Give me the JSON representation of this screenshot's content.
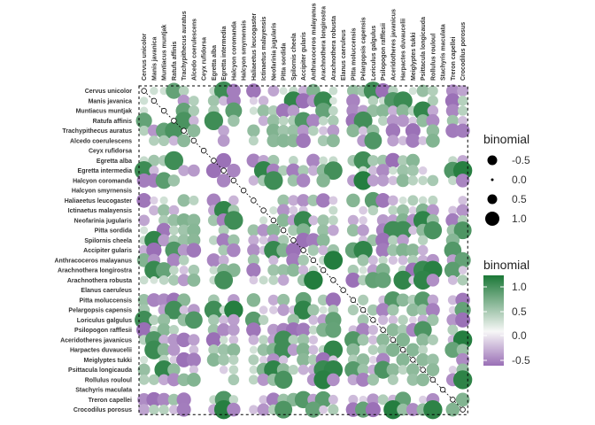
{
  "chart_data": {
    "type": "heatmap",
    "variables": [
      "Cervus unicolor",
      "Manis javanica",
      "Muntiacus muntjak",
      "Ratufa affinis",
      "Trachypithecus auratus",
      "Alcedo coerulescens",
      "Ceyx rufidorsa",
      "Egretta alba",
      "Egretta intermedia",
      "Halcyon coromanda",
      "Halcyon smyrnensis",
      "Haliaeetus leucogaster",
      "Ictinaetus malayensis",
      "Neofarinia jugularis",
      "Pitta sordida",
      "Spilornis cheela",
      "Accipiter gularis",
      "Anthracoceros malayanus",
      "Arachnothera longirostra",
      "Arachnothera robusta",
      "Elanus caeruleus",
      "Pitta moluccensis",
      "Pelargopsis capensis",
      "Loriculus galgulus",
      "Psilopogon rafflesii",
      "Aceridotheres javanicus",
      "Harpactes duvaucelii",
      "Meiglyptes tukki",
      "Psittacula longicauda",
      "Rollulus rouloul",
      "Stachyris maculata",
      "Treron capellei",
      "Crocodilus porosus"
    ],
    "size_legend": {
      "title": "binomial",
      "labels": [
        "-0.5",
        "0.0",
        "0.5",
        "1.0"
      ]
    },
    "color_legend": {
      "title": "binomial",
      "labels": [
        "1.0",
        "0.5",
        "0.0",
        "-0.5"
      ]
    },
    "color_scale": {
      "low": "#9a6fb6",
      "mid": "#f7f7f7",
      "high": "#1b7837",
      "range": [
        -0.8,
        1.3
      ]
    },
    "diagonal": "dotted line with open circles",
    "values_note": "lower triangle approximated from visible pattern; cells with no visible dot are 0"
  }
}
